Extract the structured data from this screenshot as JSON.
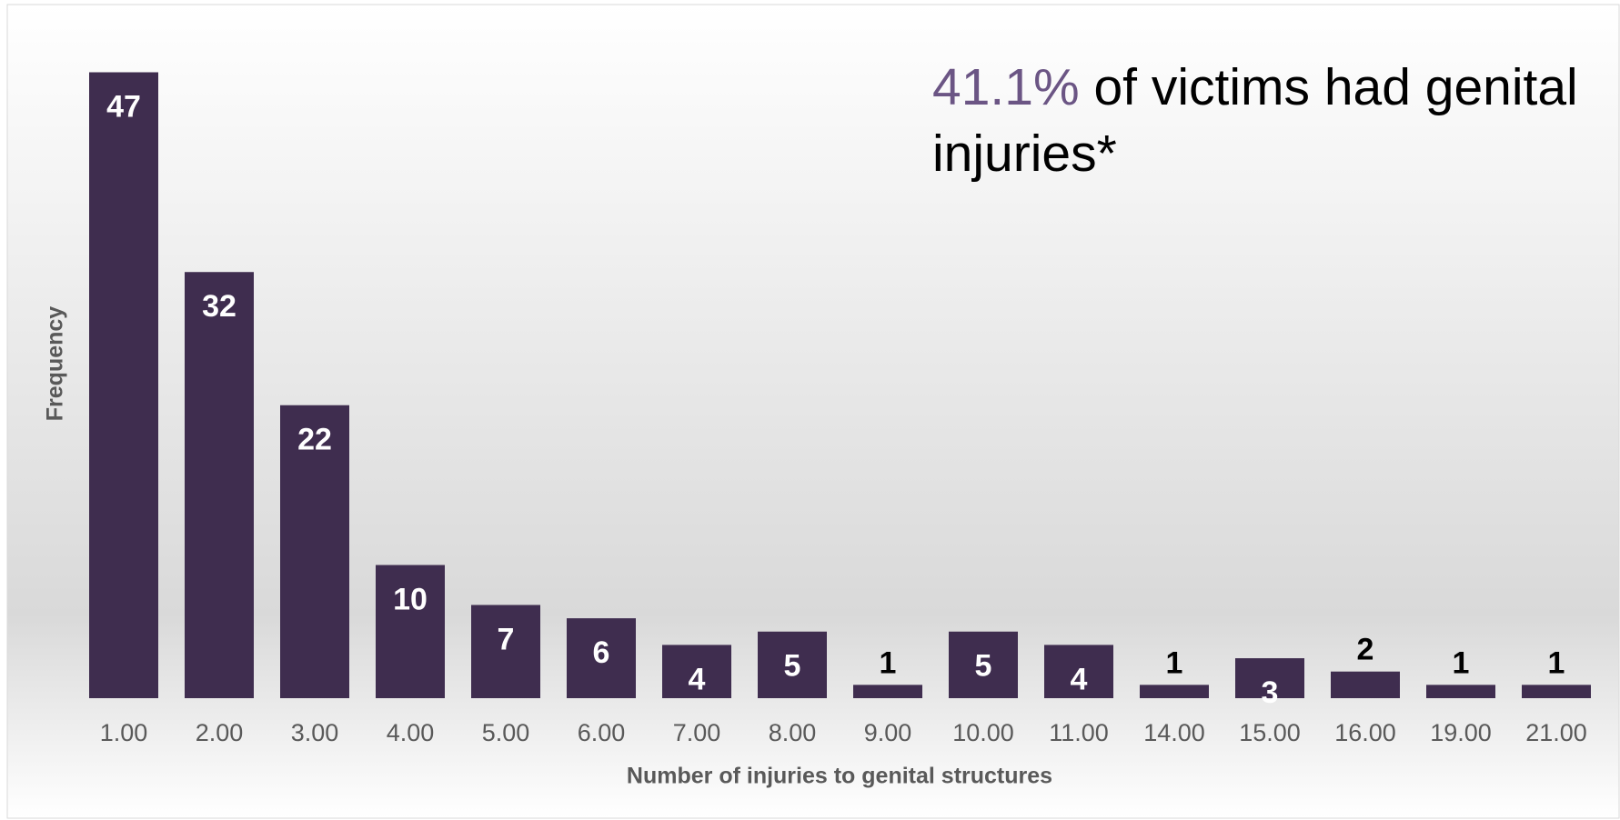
{
  "chart_data": {
    "type": "bar",
    "categories": [
      "1.00",
      "2.00",
      "3.00",
      "4.00",
      "5.00",
      "6.00",
      "7.00",
      "8.00",
      "9.00",
      "10.00",
      "11.00",
      "14.00",
      "15.00",
      "16.00",
      "19.00",
      "21.00"
    ],
    "values": [
      47,
      32,
      22,
      10,
      7,
      6,
      4,
      5,
      1,
      5,
      4,
      1,
      3,
      2,
      1,
      1
    ],
    "color": "#3f2d4f",
    "x_label": "Number of injuries to genital structures",
    "y_label": "Frequency",
    "annotation": {
      "highlight": "41.1%",
      "text": "of victims had genital injuries*",
      "highlight_color": "#6b5584"
    }
  }
}
